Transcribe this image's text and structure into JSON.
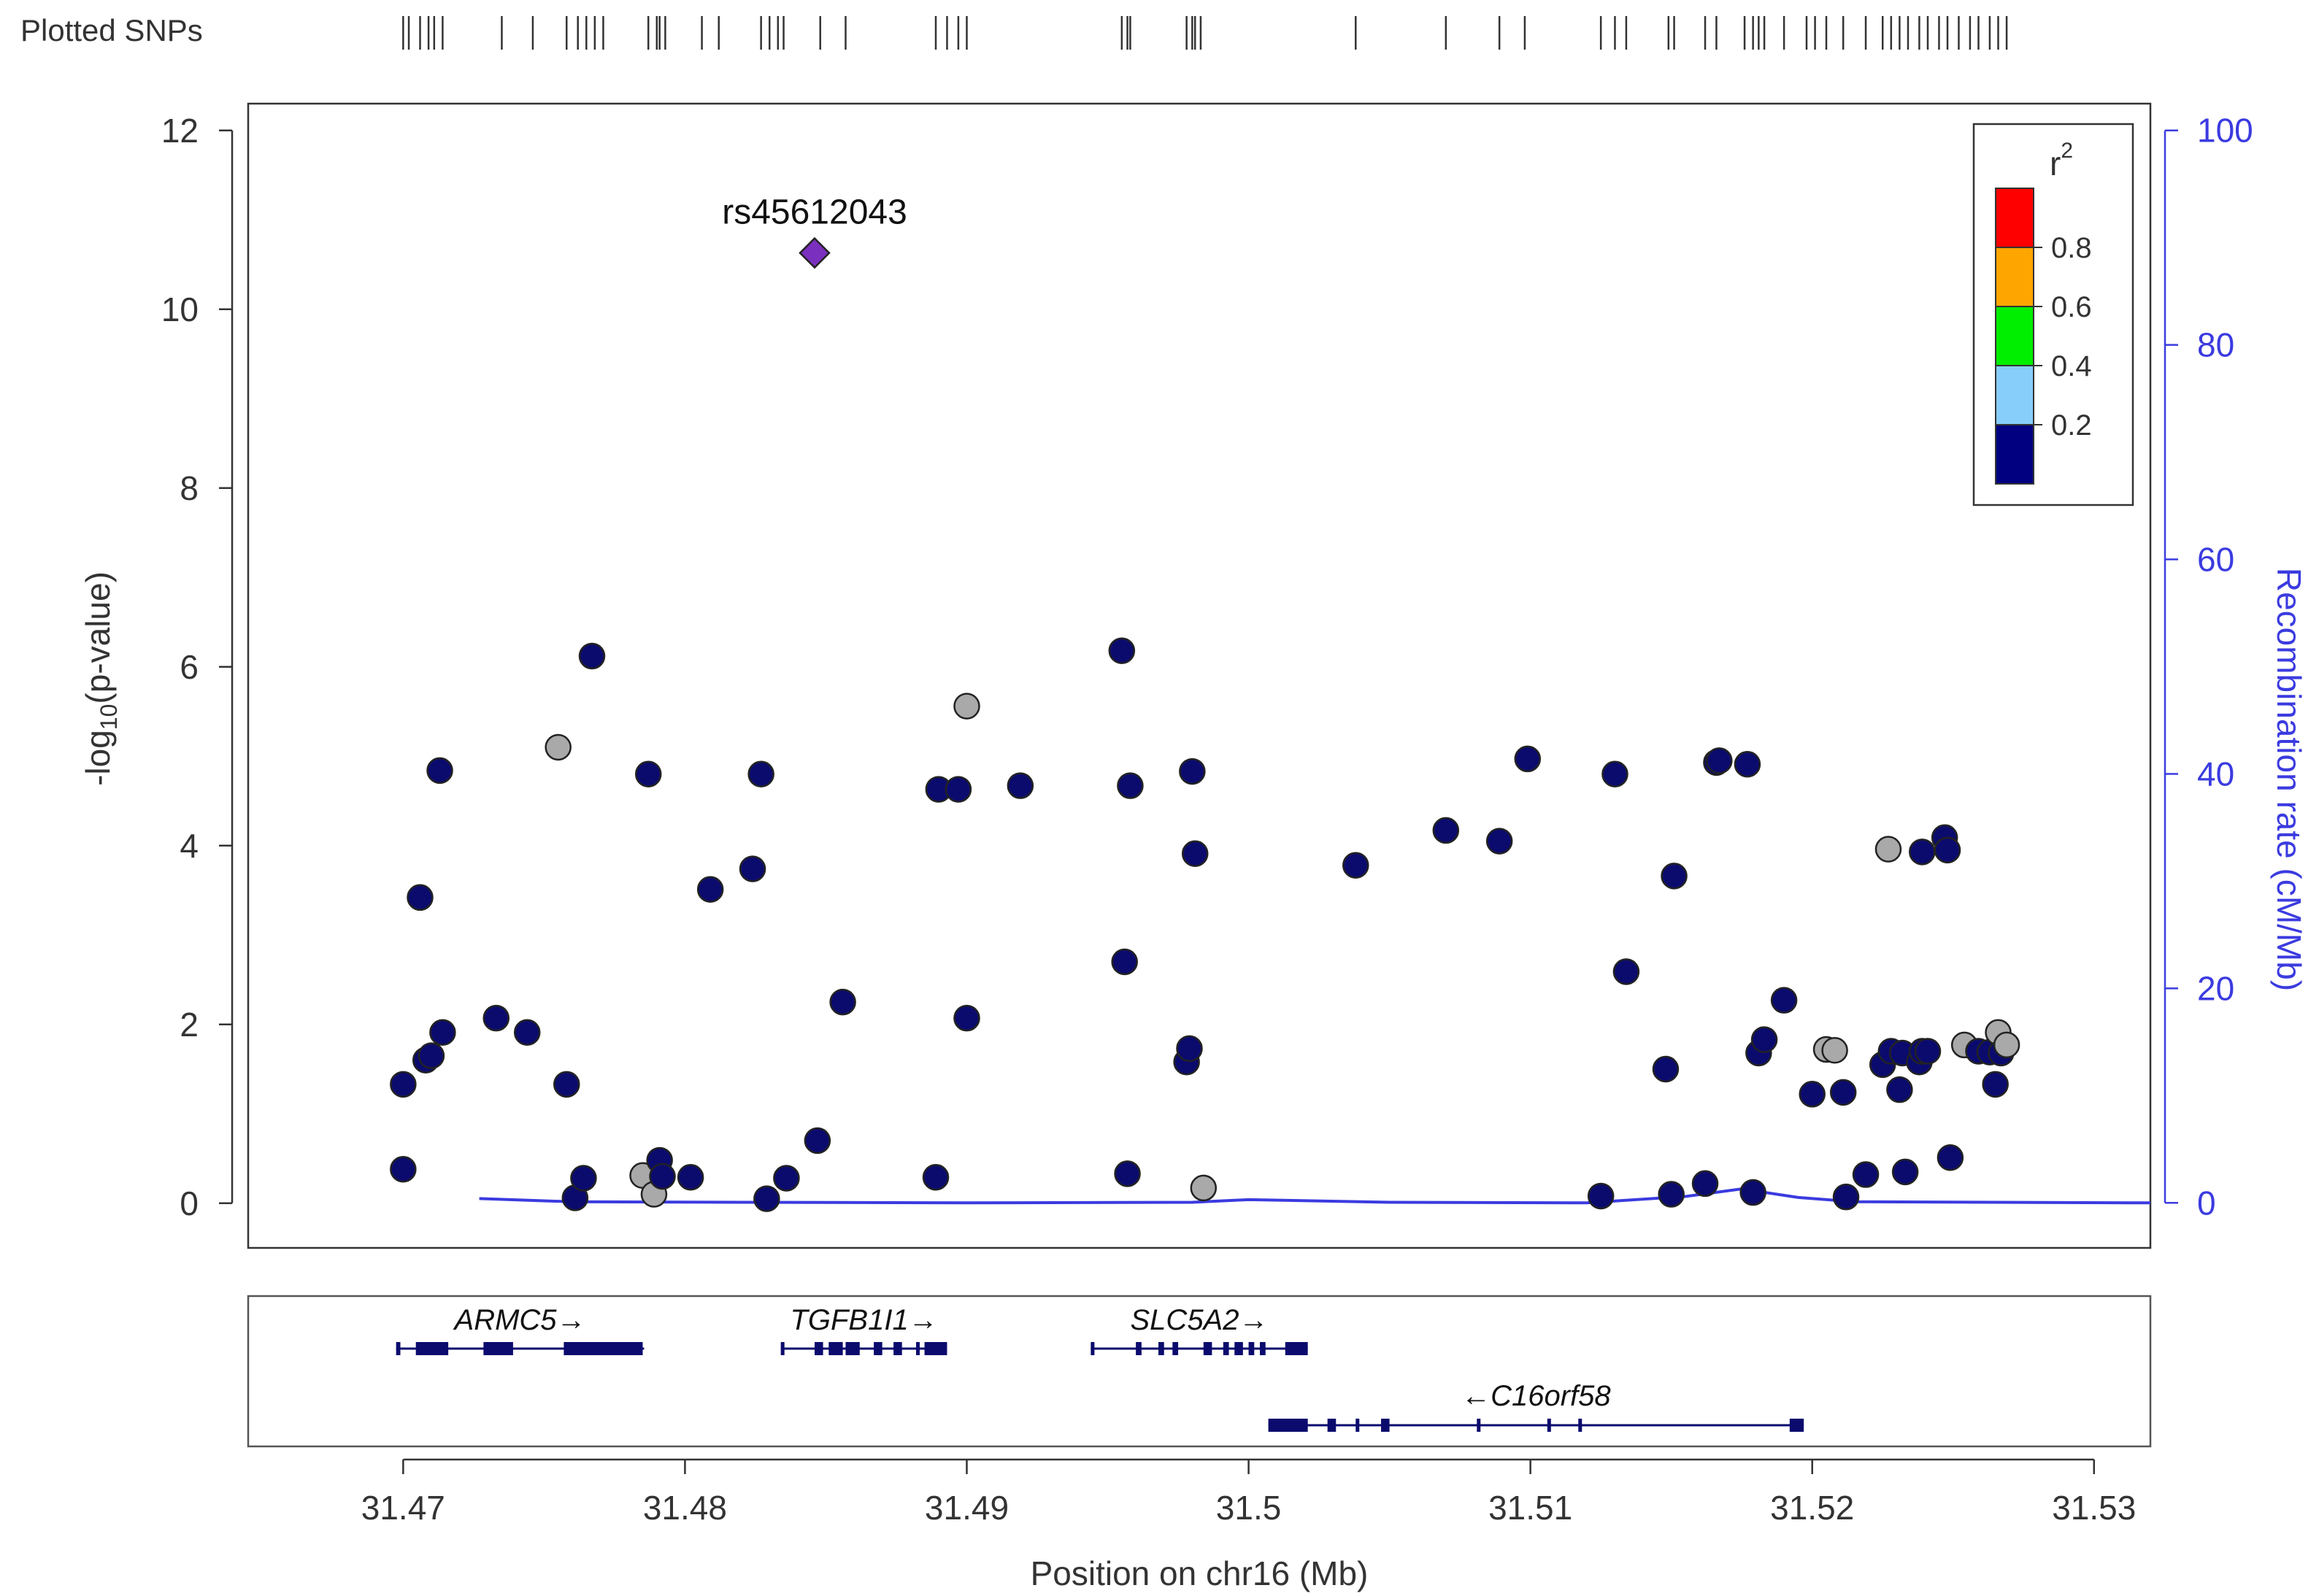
{
  "chart_data": {
    "type": "scatter",
    "title": "",
    "xlabel": "Position on chr16 (Mb)",
    "ylabel_main": "-log",
    "ylabel_sub": "10",
    "ylabel_rest": "(p-value)",
    "y2label": "Recombination rate (cM/Mb)",
    "xlim": [
      31.4645,
      31.532
    ],
    "ylim": [
      -0.5,
      12.3
    ],
    "y2lim": [
      -4.2,
      102.5
    ],
    "xticks": [
      31.47,
      31.48,
      31.49,
      31.5,
      31.51,
      31.52,
      31.53
    ],
    "xtick_labels": [
      "31.47",
      "31.48",
      "31.49",
      "31.5",
      "31.51",
      "31.52",
      "31.53"
    ],
    "yticks": [
      0,
      2,
      4,
      6,
      8,
      10,
      12
    ],
    "ytick_labels": [
      "0",
      "2",
      "4",
      "6",
      "8",
      "10",
      "12"
    ],
    "y2ticks": [
      0,
      20,
      40,
      60,
      80,
      100
    ],
    "y2tick_labels": [
      "0",
      "20",
      "40",
      "60",
      "80",
      "100"
    ],
    "lead_snp": {
      "label": "rs45612043",
      "x": 31.4846,
      "y": 10.63,
      "color": "#7B2FBE"
    },
    "legend": {
      "title": "r",
      "title_sup": "2",
      "position": "top-right",
      "colors": [
        "#000080",
        "#87CEFA",
        "#00EE00",
        "#FFA500",
        "#FF0000"
      ],
      "tick_labels": [
        "0.2",
        "0.4",
        "0.6",
        "0.8"
      ]
    },
    "point_colors": {
      "navy": "#0B0B6E",
      "gray": "#A9A9A9"
    },
    "recomb_color": "#3B3BE0",
    "points": [
      {
        "x": 31.47,
        "y": 1.33,
        "c": "navy"
      },
      {
        "x": 31.47,
        "y": 0.38,
        "c": "navy"
      },
      {
        "x": 31.4706,
        "y": 3.42,
        "c": "navy"
      },
      {
        "x": 31.4708,
        "y": 1.6,
        "c": "navy"
      },
      {
        "x": 31.471,
        "y": 1.65,
        "c": "navy"
      },
      {
        "x": 31.4713,
        "y": 4.84,
        "c": "navy"
      },
      {
        "x": 31.4714,
        "y": 1.91,
        "c": "navy"
      },
      {
        "x": 31.4733,
        "y": 2.07,
        "c": "navy"
      },
      {
        "x": 31.4744,
        "y": 1.91,
        "c": "navy"
      },
      {
        "x": 31.4755,
        "y": 5.1,
        "c": "gray"
      },
      {
        "x": 31.4758,
        "y": 1.33,
        "c": "navy"
      },
      {
        "x": 31.4761,
        "y": 0.06,
        "c": "navy"
      },
      {
        "x": 31.4764,
        "y": 0.28,
        "c": "navy"
      },
      {
        "x": 31.4767,
        "y": 6.12,
        "c": "navy"
      },
      {
        "x": 31.4785,
        "y": 0.31,
        "c": "gray"
      },
      {
        "x": 31.4787,
        "y": 4.8,
        "c": "navy"
      },
      {
        "x": 31.4789,
        "y": 0.1,
        "c": "gray"
      },
      {
        "x": 31.4791,
        "y": 0.48,
        "c": "navy"
      },
      {
        "x": 31.4792,
        "y": 0.3,
        "c": "navy"
      },
      {
        "x": 31.4802,
        "y": 0.29,
        "c": "navy"
      },
      {
        "x": 31.4809,
        "y": 3.51,
        "c": "navy"
      },
      {
        "x": 31.4824,
        "y": 3.74,
        "c": "navy"
      },
      {
        "x": 31.4827,
        "y": 4.8,
        "c": "navy"
      },
      {
        "x": 31.4829,
        "y": 0.05,
        "c": "navy"
      },
      {
        "x": 31.4836,
        "y": 0.28,
        "c": "navy"
      },
      {
        "x": 31.4847,
        "y": 0.7,
        "c": "navy"
      },
      {
        "x": 31.4856,
        "y": 2.25,
        "c": "navy"
      },
      {
        "x": 31.4889,
        "y": 0.29,
        "c": "navy"
      },
      {
        "x": 31.489,
        "y": 4.63,
        "c": "navy"
      },
      {
        "x": 31.4897,
        "y": 4.63,
        "c": "navy"
      },
      {
        "x": 31.49,
        "y": 5.56,
        "c": "gray"
      },
      {
        "x": 31.49,
        "y": 2.07,
        "c": "navy"
      },
      {
        "x": 31.4919,
        "y": 4.67,
        "c": "navy"
      },
      {
        "x": 31.4955,
        "y": 6.18,
        "c": "navy"
      },
      {
        "x": 31.4956,
        "y": 2.7,
        "c": "navy"
      },
      {
        "x": 31.4957,
        "y": 0.33,
        "c": "navy"
      },
      {
        "x": 31.4958,
        "y": 4.67,
        "c": "navy"
      },
      {
        "x": 31.4978,
        "y": 1.58,
        "c": "navy"
      },
      {
        "x": 31.4979,
        "y": 1.73,
        "c": "navy"
      },
      {
        "x": 31.498,
        "y": 4.83,
        "c": "navy"
      },
      {
        "x": 31.4981,
        "y": 3.91,
        "c": "navy"
      },
      {
        "x": 31.4984,
        "y": 0.17,
        "c": "gray"
      },
      {
        "x": 31.5038,
        "y": 3.78,
        "c": "navy"
      },
      {
        "x": 31.507,
        "y": 4.17,
        "c": "navy"
      },
      {
        "x": 31.5089,
        "y": 4.05,
        "c": "navy"
      },
      {
        "x": 31.5099,
        "y": 4.97,
        "c": "navy"
      },
      {
        "x": 31.5125,
        "y": 0.08,
        "c": "navy"
      },
      {
        "x": 31.513,
        "y": 4.8,
        "c": "navy"
      },
      {
        "x": 31.5134,
        "y": 2.59,
        "c": "navy"
      },
      {
        "x": 31.5148,
        "y": 1.5,
        "c": "navy"
      },
      {
        "x": 31.515,
        "y": 0.1,
        "c": "navy"
      },
      {
        "x": 31.5151,
        "y": 3.66,
        "c": "navy"
      },
      {
        "x": 31.5162,
        "y": 0.22,
        "c": "navy"
      },
      {
        "x": 31.5166,
        "y": 4.93,
        "c": "navy"
      },
      {
        "x": 31.5167,
        "y": 4.95,
        "c": "navy"
      },
      {
        "x": 31.5177,
        "y": 4.91,
        "c": "navy"
      },
      {
        "x": 31.5179,
        "y": 0.12,
        "c": "navy"
      },
      {
        "x": 31.5181,
        "y": 1.68,
        "c": "navy"
      },
      {
        "x": 31.5183,
        "y": 1.83,
        "c": "navy"
      },
      {
        "x": 31.519,
        "y": 2.27,
        "c": "navy"
      },
      {
        "x": 31.52,
        "y": 1.22,
        "c": "navy"
      },
      {
        "x": 31.5205,
        "y": 1.72,
        "c": "gray"
      },
      {
        "x": 31.5208,
        "y": 1.71,
        "c": "gray"
      },
      {
        "x": 31.5211,
        "y": 1.24,
        "c": "navy"
      },
      {
        "x": 31.5212,
        "y": 0.07,
        "c": "navy"
      },
      {
        "x": 31.5219,
        "y": 0.32,
        "c": "navy"
      },
      {
        "x": 31.5225,
        "y": 1.55,
        "c": "navy"
      },
      {
        "x": 31.5227,
        "y": 3.96,
        "c": "gray"
      },
      {
        "x": 31.5228,
        "y": 1.7,
        "c": "navy"
      },
      {
        "x": 31.5231,
        "y": 1.27,
        "c": "navy"
      },
      {
        "x": 31.5232,
        "y": 1.68,
        "c": "navy"
      },
      {
        "x": 31.5233,
        "y": 0.35,
        "c": "navy"
      },
      {
        "x": 31.5238,
        "y": 1.58,
        "c": "navy"
      },
      {
        "x": 31.5239,
        "y": 1.7,
        "c": "navy"
      },
      {
        "x": 31.5239,
        "y": 3.93,
        "c": "navy"
      },
      {
        "x": 31.5241,
        "y": 1.7,
        "c": "navy"
      },
      {
        "x": 31.5247,
        "y": 4.09,
        "c": "navy"
      },
      {
        "x": 31.5248,
        "y": 3.95,
        "c": "navy"
      },
      {
        "x": 31.5249,
        "y": 0.51,
        "c": "navy"
      },
      {
        "x": 31.5254,
        "y": 1.77,
        "c": "gray"
      },
      {
        "x": 31.5259,
        "y": 1.7,
        "c": "navy"
      },
      {
        "x": 31.5263,
        "y": 1.69,
        "c": "navy"
      },
      {
        "x": 31.5265,
        "y": 1.33,
        "c": "navy"
      },
      {
        "x": 31.5266,
        "y": 1.91,
        "c": "gray"
      },
      {
        "x": 31.5267,
        "y": 1.68,
        "c": "navy"
      },
      {
        "x": 31.5269,
        "y": 1.77,
        "c": "gray"
      }
    ],
    "recombination": [
      [
        31.4727,
        0.4
      ],
      [
        31.476,
        0.1
      ],
      [
        31.49,
        0.0
      ],
      [
        31.498,
        0.05
      ],
      [
        31.5,
        0.3
      ],
      [
        31.505,
        0.05
      ],
      [
        31.512,
        0.0
      ],
      [
        31.5155,
        0.6
      ],
      [
        31.5175,
        1.3
      ],
      [
        31.5195,
        0.5
      ],
      [
        31.5215,
        0.1
      ],
      [
        31.532,
        0.0
      ]
    ],
    "snp_track_label": "Plotted SNPs",
    "snp_ticks": [
      31.47,
      31.4702,
      31.4706,
      31.4709,
      31.4711,
      31.4714,
      31.4735,
      31.4746,
      31.4758,
      31.4762,
      31.4765,
      31.4768,
      31.4771,
      31.4787,
      31.479,
      31.4791,
      31.4793,
      31.4806,
      31.4812,
      31.4827,
      31.483,
      31.4833,
      31.4835,
      31.4848,
      31.4857,
      31.4889,
      31.4893,
      31.4897,
      31.49,
      31.4955,
      31.4957,
      31.4958,
      31.4978,
      31.498,
      31.4981,
      31.4983,
      31.5038,
      31.507,
      31.5089,
      31.5098,
      31.5125,
      31.513,
      31.5134,
      31.5149,
      31.5151,
      31.5162,
      31.5166,
      31.5176,
      31.5179,
      31.5181,
      31.5183,
      31.519,
      31.5198,
      31.5201,
      31.5205,
      31.5211,
      31.5219,
      31.5225,
      31.5228,
      31.5231,
      31.5234,
      31.5238,
      31.5241,
      31.5245,
      31.5248,
      31.5252,
      31.5256,
      31.5259,
      31.5263,
      31.5266,
      31.5269
    ],
    "genes": [
      {
        "name": "ARMC5",
        "arrow": "→",
        "strand": "+",
        "row": 0,
        "start": 31.46975,
        "end": 31.47855,
        "exons": [
          [
            31.46975,
            31.4699
          ],
          [
            31.47045,
            31.4716
          ],
          [
            31.47285,
            31.4739
          ],
          [
            31.4757,
            31.4785
          ]
        ]
      },
      {
        "name": "TGFB1I1",
        "arrow": "→",
        "strand": "+",
        "row": 0,
        "start": 31.4834,
        "end": 31.4893,
        "exons": [
          [
            31.4834,
            31.4835
          ],
          [
            31.4846,
            31.4849
          ],
          [
            31.4851,
            31.4856
          ],
          [
            31.4857,
            31.4862
          ],
          [
            31.4867,
            31.487
          ],
          [
            31.4874,
            31.4877
          ],
          [
            31.4882,
            31.4883
          ],
          [
            31.4885,
            31.4893
          ]
        ]
      },
      {
        "name": "SLC5A2",
        "arrow": "→",
        "strand": "+",
        "row": 0,
        "start": 31.4944,
        "end": 31.5021,
        "exons": [
          [
            31.4944,
            31.4945
          ],
          [
            31.496,
            31.4962
          ],
          [
            31.4968,
            31.497
          ],
          [
            31.4973,
            31.4975
          ],
          [
            31.4984,
            31.4987
          ],
          [
            31.4991,
            31.4993
          ],
          [
            31.4995,
            31.4998
          ],
          [
            31.5,
            31.5002
          ],
          [
            31.5004,
            31.5006
          ],
          [
            31.5013,
            31.5021
          ]
        ]
      },
      {
        "name": "C16orf58",
        "arrow": "←",
        "strand": "-",
        "row": 1,
        "start": 31.5007,
        "end": 31.5197,
        "exons": [
          [
            31.5007,
            31.5021
          ],
          [
            31.5028,
            31.5031
          ],
          [
            31.5038,
            31.5039
          ],
          [
            31.5047,
            31.505
          ],
          [
            31.5081,
            31.5082
          ],
          [
            31.5106,
            31.5107
          ],
          [
            31.5117,
            31.5118
          ],
          [
            31.5192,
            31.5197
          ]
        ]
      }
    ]
  }
}
